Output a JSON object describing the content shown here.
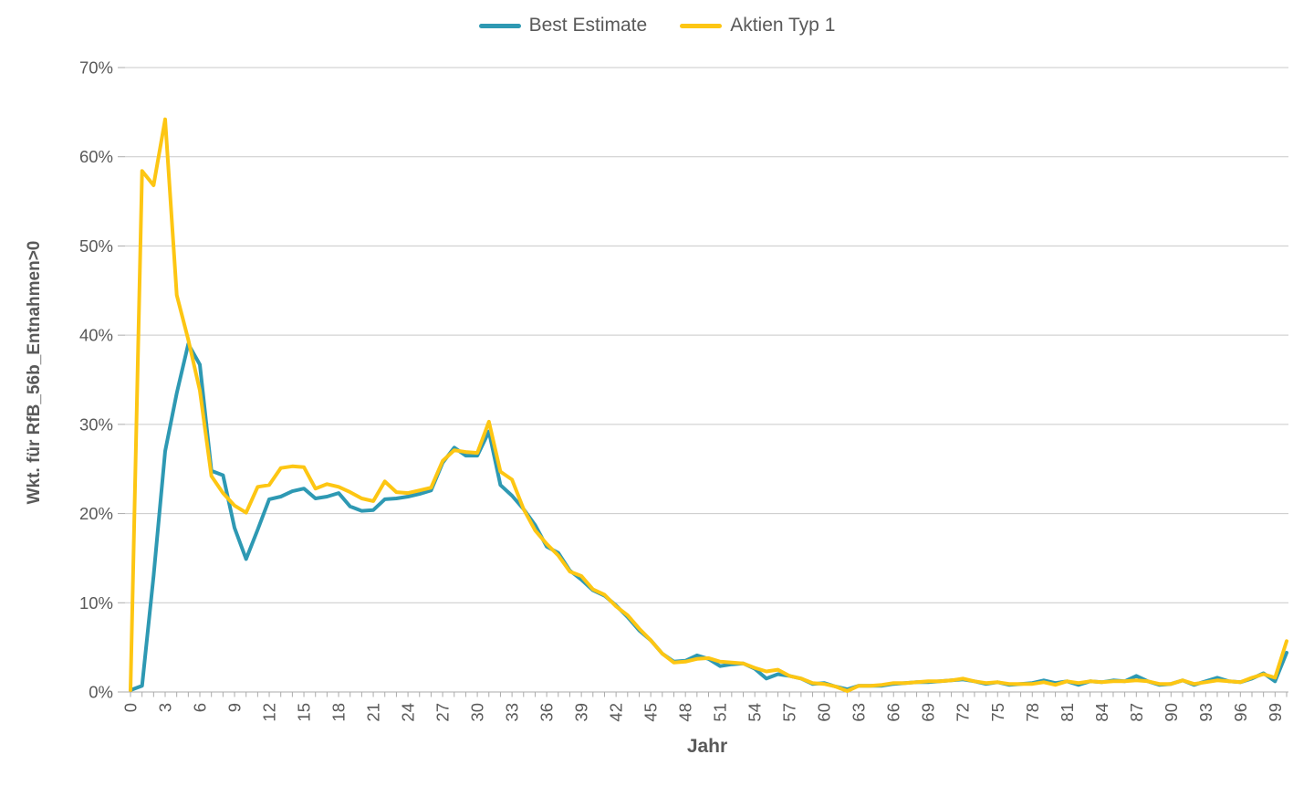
{
  "legend": {
    "items": [
      {
        "label": "Best Estimate",
        "color": "#2E99B3"
      },
      {
        "label": "Aktien Typ 1",
        "color": "#FDC613"
      }
    ]
  },
  "axes": {
    "x_title": "Jahr",
    "y_title": "Wkt. für RfB_56b_Entnahmen>0",
    "y_tick_labels": [
      "0%",
      "10%",
      "20%",
      "30%",
      "40%",
      "50%",
      "60%",
      "70%"
    ],
    "x_tick_labels": [
      "0",
      "3",
      "6",
      "9",
      "12",
      "15",
      "18",
      "21",
      "24",
      "27",
      "30",
      "33",
      "36",
      "39",
      "42",
      "45",
      "48",
      "51",
      "54",
      "57",
      "60",
      "63",
      "66",
      "69",
      "72",
      "75",
      "78",
      "81",
      "84",
      "87",
      "90",
      "93",
      "96",
      "99"
    ]
  },
  "chart_data": {
    "type": "line",
    "title": "",
    "xlabel": "Jahr",
    "ylabel": "Wkt. für RfB_56b_Entnahmen>0",
    "x_min": 0,
    "x_max": 100,
    "x_step": 1,
    "x_tick_interval": 3,
    "ylim": [
      0,
      70
    ],
    "y_unit": "%",
    "grid": true,
    "legend_position": "top-center",
    "series": [
      {
        "name": "Best Estimate",
        "color": "#2E99B3",
        "values": [
          0.2,
          0.7,
          13,
          27,
          33.5,
          39,
          36.7,
          24.8,
          24.3,
          18.4,
          14.9,
          18.2,
          21.6,
          21.9,
          22.5,
          22.8,
          21.7,
          21.9,
          22.3,
          20.8,
          20.3,
          20.4,
          21.6,
          21.7,
          21.9,
          22.2,
          22.6,
          25.7,
          27.4,
          26.5,
          26.5,
          29.2,
          23.2,
          22.0,
          20.5,
          18.7,
          16.3,
          15.6,
          13.6,
          12.6,
          11.4,
          10.8,
          9.7,
          8.4,
          6.9,
          5.8,
          4.3,
          3.4,
          3.5,
          4.1,
          3.7,
          2.9,
          3.1,
          3.2,
          2.6,
          1.5,
          2.0,
          1.8,
          1.5,
          0.9,
          1.0,
          0.6,
          0.3,
          0.7,
          0.7,
          0.7,
          0.9,
          1.0,
          1.1,
          1.1,
          1.2,
          1.3,
          1.4,
          1.2,
          0.9,
          1.1,
          0.8,
          0.9,
          1.0,
          1.3,
          1.0,
          1.2,
          0.8,
          1.2,
          1.1,
          1.3,
          1.2,
          1.8,
          1.2,
          0.8,
          0.9,
          1.3,
          0.8,
          1.2,
          1.6,
          1.2,
          1.1,
          1.5,
          2.1,
          1.2,
          4.4
        ]
      },
      {
        "name": "Aktien Typ 1",
        "color": "#FDC613",
        "values": [
          0.2,
          58.4,
          56.8,
          64.2,
          44.5,
          39.5,
          33.8,
          24.2,
          22.3,
          20.9,
          20.1,
          23.0,
          23.2,
          25.1,
          25.3,
          25.2,
          22.8,
          23.3,
          23.0,
          22.4,
          21.7,
          21.4,
          23.6,
          22.4,
          22.3,
          22.6,
          22.9,
          25.9,
          27.1,
          26.9,
          26.8,
          30.3,
          24.7,
          23.8,
          20.5,
          18.1,
          16.6,
          15.3,
          13.5,
          13.0,
          11.5,
          10.9,
          9.6,
          8.6,
          7.1,
          5.8,
          4.3,
          3.3,
          3.4,
          3.7,
          3.8,
          3.4,
          3.3,
          3.2,
          2.7,
          2.3,
          2.5,
          1.8,
          1.5,
          1.0,
          0.9,
          0.6,
          0.1,
          0.7,
          0.7,
          0.8,
          1.0,
          1.0,
          1.1,
          1.2,
          1.2,
          1.3,
          1.5,
          1.2,
          1.0,
          1.1,
          0.9,
          0.9,
          0.9,
          1.1,
          0.8,
          1.2,
          1.0,
          1.2,
          1.1,
          1.2,
          1.2,
          1.3,
          1.2,
          0.9,
          0.9,
          1.3,
          0.9,
          1.1,
          1.3,
          1.2,
          1.1,
          1.6,
          2.0,
          1.6,
          5.7
        ]
      }
    ]
  }
}
